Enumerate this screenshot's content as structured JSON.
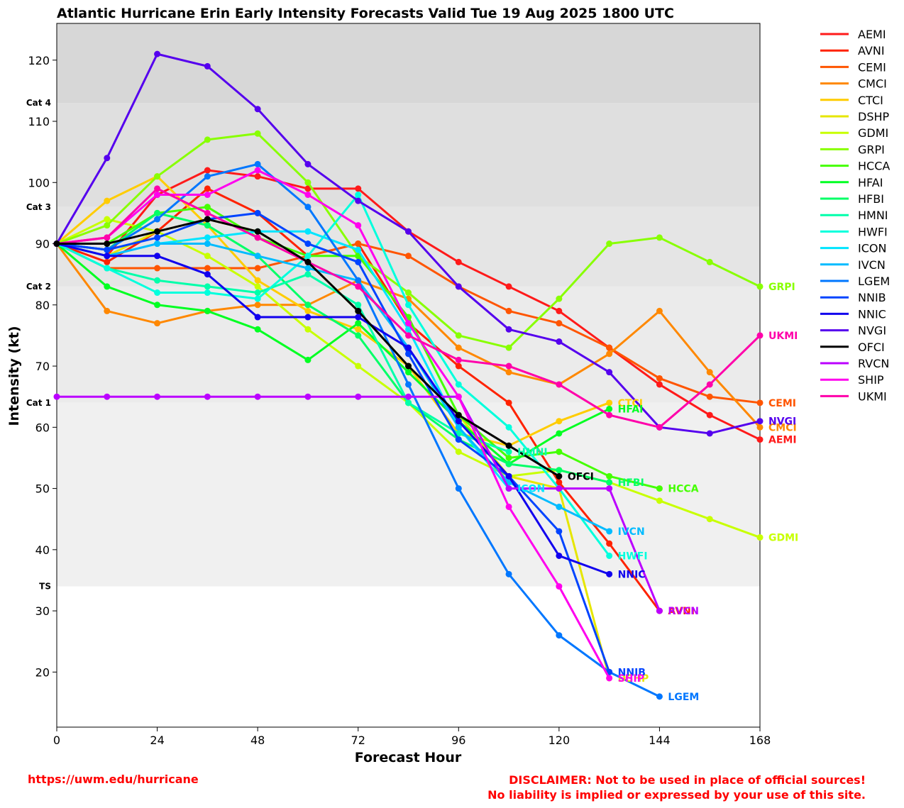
{
  "chart_data": {
    "type": "line",
    "title": "Atlantic Hurricane Erin Early Intensity Forecasts Valid Tue 19 Aug 2025 1800 UTC",
    "xlabel": "Forecast Hour",
    "ylabel": "Intensity (kt)",
    "xlim": [
      0,
      168
    ],
    "ylim": [
      11,
      126
    ],
    "xticks": [
      0,
      24,
      48,
      72,
      96,
      120,
      144,
      168
    ],
    "yticks": [
      20,
      30,
      40,
      50,
      60,
      70,
      80,
      90,
      100,
      110,
      120
    ],
    "grid": false,
    "legend_position": "right-outside",
    "categories_bands": [
      {
        "label": "TS",
        "from": 34,
        "to": 64,
        "color": "#f0f0f0"
      },
      {
        "label": "Cat 1",
        "from": 64,
        "to": 83,
        "color": "#ebebeb"
      },
      {
        "label": "Cat 2",
        "from": 83,
        "to": 96,
        "color": "#e5e5e5"
      },
      {
        "label": "Cat 3",
        "from": 96,
        "to": 113,
        "color": "#dfdfdf"
      },
      {
        "label": "Cat 4",
        "from": 113,
        "to": 126,
        "color": "#d7d7d7"
      }
    ],
    "series": [
      {
        "name": "AEMI",
        "color": "#ff1a1a",
        "x": [
          0,
          12,
          24,
          36,
          48,
          60,
          72,
          84,
          96,
          108,
          120,
          132,
          144,
          156,
          168
        ],
        "y": [
          90,
          88,
          98,
          102,
          101,
          99,
          99,
          92,
          87,
          83,
          79,
          73,
          67,
          62,
          58
        ]
      },
      {
        "name": "AVNI",
        "color": "#ff2200",
        "x": [
          0,
          12,
          24,
          36,
          48,
          60,
          72,
          84,
          96,
          108,
          120,
          132,
          144
        ],
        "y": [
          90,
          87,
          92,
          99,
          95,
          88,
          90,
          77,
          70,
          64,
          51,
          41,
          30
        ]
      },
      {
        "name": "CEMI",
        "color": "#ff5500",
        "x": [
          0,
          12,
          24,
          36,
          48,
          60,
          72,
          84,
          96,
          108,
          120,
          132,
          144,
          156,
          168
        ],
        "y": [
          90,
          86,
          86,
          86,
          86,
          88,
          90,
          88,
          83,
          79,
          77,
          73,
          68,
          65,
          64
        ]
      },
      {
        "name": "CMCI",
        "color": "#ff8800",
        "x": [
          0,
          12,
          24,
          36,
          48,
          60,
          72,
          84,
          96,
          108,
          120,
          132,
          144,
          156,
          168
        ],
        "y": [
          90,
          79,
          77,
          79,
          80,
          80,
          84,
          81,
          73,
          69,
          67,
          72,
          79,
          69,
          60
        ]
      },
      {
        "name": "CTCI",
        "color": "#ffcc00",
        "x": [
          0,
          12,
          24,
          36,
          48,
          60,
          72,
          84,
          96,
          108,
          120,
          132
        ],
        "y": [
          90,
          97,
          101,
          93,
          84,
          79,
          76,
          70,
          59,
          57,
          61,
          64
        ]
      },
      {
        "name": "DSHP",
        "color": "#e6e600",
        "x": [
          0,
          12,
          24,
          36,
          48,
          60,
          72,
          84,
          96,
          108,
          120,
          132
        ],
        "y": [
          90,
          88,
          92,
          94,
          92,
          87,
          79,
          70,
          62,
          52,
          50,
          19
        ]
      },
      {
        "name": "GDMI",
        "color": "#c8ff00",
        "x": [
          0,
          12,
          24,
          36,
          48,
          60,
          72,
          84,
          96,
          108,
          120,
          132,
          144,
          156,
          168
        ],
        "y": [
          90,
          94,
          92,
          88,
          83,
          76,
          70,
          64,
          56,
          52,
          53,
          51,
          48,
          45,
          42
        ]
      },
      {
        "name": "GRPI",
        "color": "#88ff00",
        "x": [
          0,
          12,
          24,
          36,
          48,
          60,
          72,
          84,
          96,
          108,
          120,
          132,
          144,
          156,
          168
        ],
        "y": [
          90,
          93,
          101,
          107,
          108,
          100,
          88,
          82,
          75,
          73,
          81,
          90,
          91,
          87,
          83
        ]
      },
      {
        "name": "HCCA",
        "color": "#44ff00",
        "x": [
          0,
          12,
          24,
          36,
          48,
          60,
          72,
          84,
          96,
          108,
          120,
          132,
          144
        ],
        "y": [
          90,
          90,
          95,
          96,
          91,
          88,
          88,
          78,
          62,
          55,
          56,
          52,
          50
        ]
      },
      {
        "name": "HFAI",
        "color": "#00ff22",
        "x": [
          0,
          12,
          24,
          36,
          48,
          60,
          72,
          84,
          96,
          108,
          120,
          132
        ],
        "y": [
          90,
          83,
          80,
          79,
          76,
          71,
          77,
          69,
          61,
          54,
          59,
          63
        ]
      },
      {
        "name": "HFBI",
        "color": "#00ff66",
        "x": [
          0,
          12,
          24,
          36,
          48,
          60,
          72,
          84,
          96,
          108,
          120,
          132
        ],
        "y": [
          90,
          89,
          95,
          93,
          88,
          80,
          75,
          64,
          58,
          54,
          53,
          51
        ]
      },
      {
        "name": "HMNI",
        "color": "#00ffaa",
        "x": [
          0,
          12,
          24,
          36,
          48,
          60,
          72,
          84,
          96,
          108
        ],
        "y": [
          90,
          86,
          84,
          83,
          82,
          85,
          80,
          64,
          59,
          56
        ]
      },
      {
        "name": "HWFI",
        "color": "#00ffdd",
        "x": [
          0,
          12,
          24,
          36,
          48,
          60,
          72,
          84,
          96,
          108,
          120,
          132
        ],
        "y": [
          90,
          86,
          82,
          82,
          81,
          88,
          98,
          80,
          67,
          60,
          50,
          39
        ]
      },
      {
        "name": "ICON",
        "color": "#00e5ff",
        "x": [
          0,
          12,
          24,
          36,
          48,
          60,
          72,
          84,
          96,
          108
        ],
        "y": [
          90,
          88,
          90,
          91,
          92,
          92,
          89,
          76,
          60,
          50
        ]
      },
      {
        "name": "IVCN",
        "color": "#00bbff",
        "x": [
          0,
          12,
          24,
          36,
          48,
          60,
          72,
          84,
          96,
          108,
          120,
          132
        ],
        "y": [
          90,
          88,
          90,
          90,
          88,
          86,
          84,
          73,
          60,
          51,
          47,
          43
        ]
      },
      {
        "name": "LGEM",
        "color": "#0077ff",
        "x": [
          0,
          12,
          24,
          36,
          48,
          60,
          72,
          84,
          96,
          108,
          120,
          132,
          144
        ],
        "y": [
          90,
          89,
          94,
          101,
          103,
          96,
          84,
          67,
          50,
          36,
          26,
          20,
          16
        ]
      },
      {
        "name": "NNIB",
        "color": "#0044ff",
        "x": [
          0,
          12,
          24,
          36,
          48,
          60,
          72,
          84,
          96,
          108,
          120,
          132
        ],
        "y": [
          90,
          89,
          91,
          94,
          95,
          90,
          87,
          72,
          58,
          52,
          43,
          20
        ]
      },
      {
        "name": "NNIC",
        "color": "#1100ee",
        "x": [
          0,
          12,
          24,
          36,
          48,
          60,
          72,
          84,
          96,
          108,
          120,
          132
        ],
        "y": [
          90,
          88,
          88,
          85,
          78,
          78,
          78,
          73,
          61,
          52,
          39,
          36
        ]
      },
      {
        "name": "NVGI",
        "color": "#5500ee",
        "x": [
          0,
          12,
          24,
          36,
          48,
          60,
          72,
          84,
          96,
          108,
          120,
          132,
          144,
          156,
          168
        ],
        "y": [
          90,
          104,
          121,
          119,
          112,
          103,
          97,
          92,
          83,
          76,
          74,
          69,
          60,
          59,
          61
        ]
      },
      {
        "name": "OFCI",
        "color": "#000000",
        "x": [
          0,
          12,
          24,
          36,
          48,
          60,
          72,
          84,
          96,
          108,
          120
        ],
        "y": [
          90,
          90,
          92,
          94,
          92,
          87,
          79,
          70,
          62,
          57,
          52
        ]
      },
      {
        "name": "RVCN",
        "color": "#bb00ff",
        "x": [
          0,
          12,
          24,
          36,
          48,
          60,
          72,
          84,
          96,
          108,
          120,
          132,
          144
        ],
        "y": [
          65,
          65,
          65,
          65,
          65,
          65,
          65,
          65,
          65,
          50,
          50,
          50,
          30
        ]
      },
      {
        "name": "SHIP",
        "color": "#ff00ee",
        "x": [
          0,
          12,
          24,
          36,
          48,
          60,
          72,
          84,
          96,
          108,
          120,
          132
        ],
        "y": [
          90,
          91,
          98,
          98,
          102,
          98,
          93,
          77,
          65,
          47,
          34,
          19
        ]
      },
      {
        "name": "UKMI",
        "color": "#ff00aa",
        "x": [
          0,
          12,
          24,
          36,
          48,
          60,
          72,
          84,
          96,
          108,
          120,
          132,
          144,
          156,
          168
        ],
        "y": [
          90,
          91,
          99,
          95,
          91,
          87,
          83,
          75,
          71,
          70,
          67,
          62,
          60,
          67,
          75
        ]
      }
    ]
  },
  "footer": {
    "url": "https://uwm.edu/hurricane",
    "disclaimer_line1": "DISCLAIMER: Not to be used in place of official sources!",
    "disclaimer_line2": "No liability is implied or expressed by your use of this site."
  }
}
